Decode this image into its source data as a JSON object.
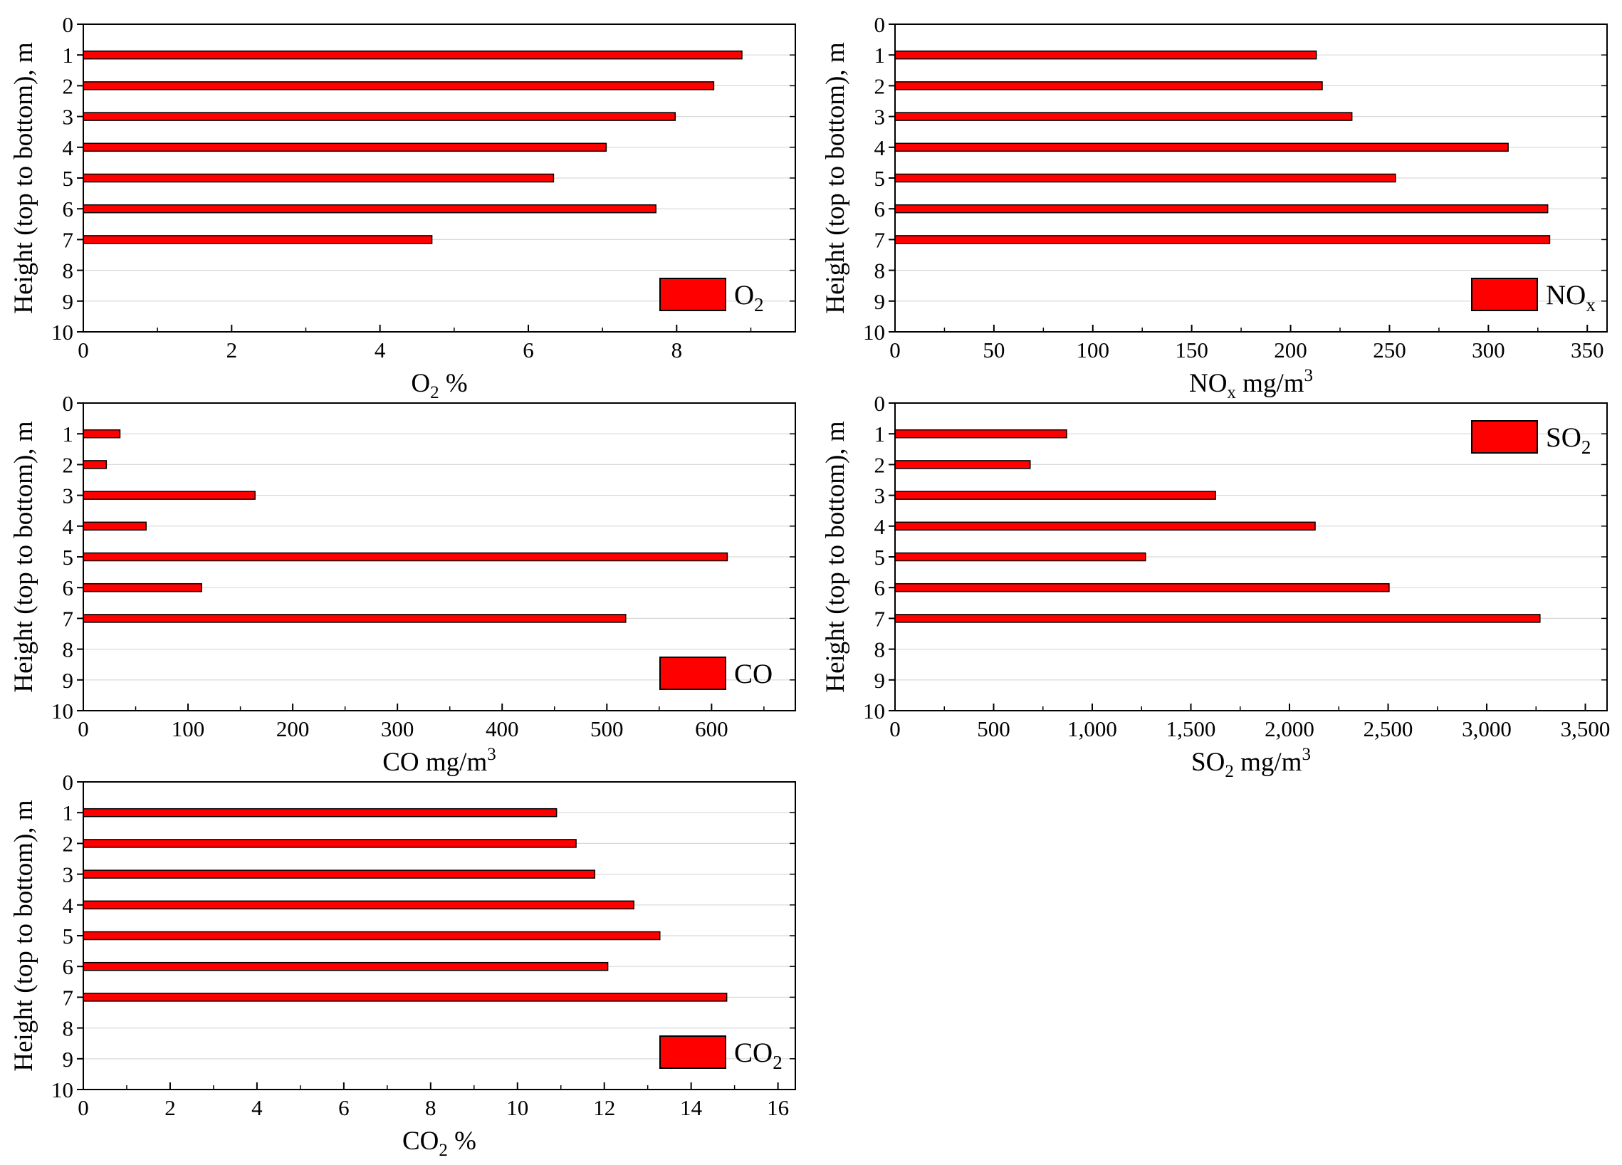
{
  "figure": {
    "bar_color": "#ff0000",
    "bar_edge_color": "#000000",
    "grid_color": "#d9d9d9"
  },
  "chart_data": [
    {
      "id": "o2",
      "type": "bar",
      "orientation": "horizontal",
      "ylabel": "Height (top to bottom), m",
      "xlabel": {
        "base": "O",
        "sub": "2",
        "suffix": " %"
      },
      "legend": {
        "base": "O",
        "sub": "2",
        "placement": "bottom-right"
      },
      "categories": [
        "1",
        "2",
        "3",
        "4",
        "5",
        "6",
        "7"
      ],
      "values": [
        8.88,
        8.5,
        7.98,
        7.05,
        6.34,
        7.72,
        4.7
      ],
      "x_ticks": [
        0,
        2,
        4,
        6,
        8
      ],
      "x_tick_labels": [
        "0",
        "2",
        "4",
        "6",
        "8"
      ],
      "xlim": [
        0,
        9.6
      ],
      "y_ticks": [
        "0",
        "1",
        "2",
        "3",
        "4",
        "5",
        "6",
        "7",
        "8",
        "9",
        "10"
      ],
      "ylim": [
        0,
        10
      ],
      "grid": true
    },
    {
      "id": "nox",
      "type": "bar",
      "orientation": "horizontal",
      "ylabel": "Height (top to bottom), m",
      "xlabel": {
        "base": "NO",
        "sub": "x",
        "suffix": " mg/m",
        "sup": "3"
      },
      "legend": {
        "base": "NO",
        "sub": "x",
        "placement": "bottom-right"
      },
      "categories": [
        "1",
        "2",
        "3",
        "4",
        "5",
        "6",
        "7"
      ],
      "values": [
        213,
        216,
        231,
        310,
        253,
        330,
        331
      ],
      "x_ticks": [
        0,
        50,
        100,
        150,
        200,
        250,
        300,
        350
      ],
      "x_tick_labels": [
        "0",
        "50",
        "100",
        "150",
        "200",
        "250",
        "300",
        "350"
      ],
      "xlim": [
        0,
        360
      ],
      "y_ticks": [
        "0",
        "1",
        "2",
        "3",
        "4",
        "5",
        "6",
        "7",
        "8",
        "9",
        "10"
      ],
      "ylim": [
        0,
        10
      ],
      "grid": true
    },
    {
      "id": "co",
      "type": "bar",
      "orientation": "horizontal",
      "ylabel": "Height (top to bottom), m",
      "xlabel": {
        "base": "CO",
        "sub": "",
        "suffix": " mg/m",
        "sup": "3"
      },
      "legend": {
        "base": "CO",
        "sub": "",
        "placement": "bottom-right"
      },
      "categories": [
        "1",
        "2",
        "3",
        "4",
        "5",
        "6",
        "7"
      ],
      "values": [
        35,
        22,
        164,
        60,
        615,
        113,
        518
      ],
      "x_ticks": [
        0,
        100,
        200,
        300,
        400,
        500,
        600
      ],
      "x_tick_labels": [
        "0",
        "100",
        "200",
        "300",
        "400",
        "500",
        "600"
      ],
      "xlim": [
        0,
        680
      ],
      "y_ticks": [
        "0",
        "1",
        "2",
        "3",
        "4",
        "5",
        "6",
        "7",
        "8",
        "9",
        "10"
      ],
      "ylim": [
        0,
        10
      ],
      "grid": true
    },
    {
      "id": "so2",
      "type": "bar",
      "orientation": "horizontal",
      "ylabel": "Height (top to bottom), m",
      "xlabel": {
        "base": "SO",
        "sub": "2",
        "suffix": " mg/m",
        "sup": "3"
      },
      "legend": {
        "base": "SO",
        "sub": "2",
        "placement": "top-right"
      },
      "categories": [
        "1",
        "2",
        "3",
        "4",
        "5",
        "6",
        "7"
      ],
      "values": [
        870,
        685,
        1625,
        2130,
        1270,
        2505,
        3270
      ],
      "x_ticks": [
        0,
        500,
        1000,
        1500,
        2000,
        2500,
        3000,
        3500
      ],
      "x_tick_labels": [
        "0",
        "500",
        "1,000",
        "1,500",
        "2,000",
        "2,500",
        "3,000",
        "3,500"
      ],
      "xlim": [
        0,
        3610
      ],
      "y_ticks": [
        "0",
        "1",
        "2",
        "3",
        "4",
        "5",
        "6",
        "7",
        "8",
        "9",
        "10"
      ],
      "ylim": [
        0,
        10
      ],
      "grid": true
    },
    {
      "id": "co2",
      "type": "bar",
      "orientation": "horizontal",
      "ylabel": "Height (top to bottom), m",
      "xlabel": {
        "base": "CO",
        "sub": "2",
        "suffix": " %"
      },
      "legend": {
        "base": "CO",
        "sub": "2",
        "placement": "bottom-right"
      },
      "categories": [
        "1",
        "2",
        "3",
        "4",
        "5",
        "6",
        "7"
      ],
      "values": [
        10.9,
        11.35,
        11.78,
        12.68,
        13.28,
        12.08,
        14.82
      ],
      "x_ticks": [
        0,
        2,
        4,
        6,
        8,
        10,
        12,
        14,
        16
      ],
      "x_tick_labels": [
        "0",
        "2",
        "4",
        "6",
        "8",
        "10",
        "12",
        "14",
        "16"
      ],
      "xlim": [
        0,
        16.4
      ],
      "y_ticks": [
        "0",
        "1",
        "2",
        "3",
        "4",
        "5",
        "6",
        "7",
        "8",
        "9",
        "10"
      ],
      "ylim": [
        0,
        10
      ],
      "grid": true
    }
  ]
}
